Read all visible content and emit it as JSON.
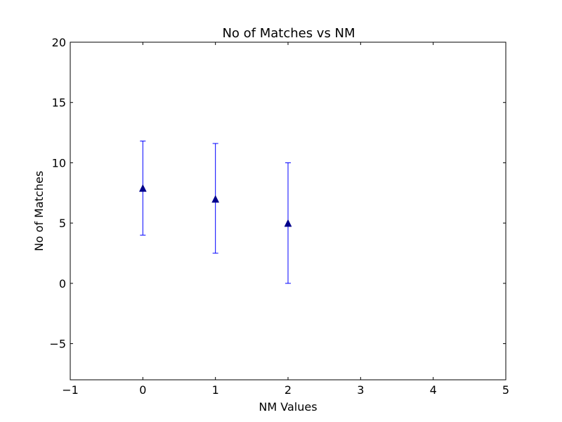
{
  "chart_data": {
    "type": "scatter",
    "title": "No of Matches vs NM",
    "xlabel": "NM Values",
    "ylabel": "No of Matches",
    "xlim": [
      -1,
      5
    ],
    "ylim": [
      -8,
      20
    ],
    "xticks": [
      -1,
      0,
      1,
      2,
      3,
      4,
      5
    ],
    "yticks": [
      -5,
      0,
      5,
      10,
      15,
      20
    ],
    "xtick_labels": [
      "−1",
      "0",
      "1",
      "2",
      "3",
      "4",
      "5"
    ],
    "ytick_labels": [
      "−5",
      "0",
      "5",
      "10",
      "15",
      "20"
    ],
    "grid": false,
    "marker": "triangle-up",
    "errorbars": true,
    "colors": {
      "points": "#00008b",
      "errorbars": "#0000ff",
      "axes": "#000000"
    },
    "points": [
      {
        "x": 0,
        "y": 7.9,
        "ylow": 4.0,
        "yhigh": 11.8
      },
      {
        "x": 1,
        "y": 7.0,
        "ylow": 2.5,
        "yhigh": 11.6
      },
      {
        "x": 2,
        "y": 5.0,
        "ylow": 0.0,
        "yhigh": 10.0
      }
    ]
  }
}
